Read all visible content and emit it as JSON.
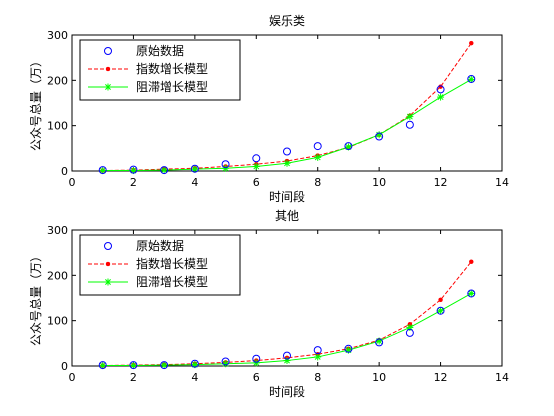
{
  "chart_data": [
    {
      "type": "line",
      "title": "娱乐类",
      "xlabel": "时间段",
      "ylabel": "公众号总量（万）",
      "xlim": [
        0,
        14
      ],
      "ylim": [
        0,
        300
      ],
      "xticks": [
        "0",
        "2",
        "4",
        "6",
        "8",
        "10",
        "12",
        "14"
      ],
      "yticks": [
        "0",
        "100",
        "200",
        "300"
      ],
      "grid": false,
      "legend_position": "top-left",
      "series": [
        {
          "name": "原始数据",
          "style": "markers-circle",
          "color": "#0000ff",
          "x": [
            1,
            2,
            3,
            4,
            5,
            6,
            7,
            8,
            9,
            10,
            11,
            12,
            13
          ],
          "y": [
            2,
            3,
            2,
            5,
            15,
            28,
            43,
            55,
            55,
            76,
            102,
            180,
            203
          ]
        },
        {
          "name": "指数增长模型",
          "style": "dashed-dot",
          "color": "#ff0000",
          "x": [
            1,
            2,
            3,
            4,
            5,
            6,
            7,
            8,
            9,
            10,
            11,
            12,
            13
          ],
          "y": [
            1,
            2,
            4,
            6,
            10,
            15,
            22,
            34,
            52,
            80,
            122,
            186,
            282
          ]
        },
        {
          "name": "阻滞增长模型",
          "style": "solid-star",
          "color": "#00ff00",
          "x": [
            1,
            2,
            3,
            4,
            5,
            6,
            7,
            8,
            9,
            10,
            11,
            12,
            13
          ],
          "y": [
            1,
            1,
            2,
            4,
            6,
            10,
            17,
            30,
            53,
            80,
            120,
            163,
            202
          ]
        }
      ]
    },
    {
      "type": "line",
      "title": "其他",
      "xlabel": "时间段",
      "ylabel": "公众号总量（万）",
      "xlim": [
        0,
        14
      ],
      "ylim": [
        0,
        300
      ],
      "xticks": [
        "0",
        "2",
        "4",
        "6",
        "8",
        "10",
        "12",
        "14"
      ],
      "yticks": [
        "0",
        "100",
        "200",
        "300"
      ],
      "grid": false,
      "legend_position": "top-left",
      "series": [
        {
          "name": "原始数据",
          "style": "markers-circle",
          "color": "#0000ff",
          "x": [
            1,
            2,
            3,
            4,
            5,
            6,
            7,
            8,
            9,
            10,
            11,
            12,
            13
          ],
          "y": [
            2,
            2,
            2,
            5,
            10,
            16,
            23,
            35,
            38,
            52,
            73,
            122,
            160
          ]
        },
        {
          "name": "指数增长模型",
          "style": "dashed-dot",
          "color": "#ff0000",
          "x": [
            1,
            2,
            3,
            4,
            5,
            6,
            7,
            8,
            9,
            10,
            11,
            12,
            13
          ],
          "y": [
            1,
            2,
            3,
            5,
            8,
            12,
            18,
            26,
            38,
            57,
            92,
            146,
            230
          ]
        },
        {
          "name": "阻滞增长模型",
          "style": "solid-star",
          "color": "#00ff00",
          "x": [
            1,
            2,
            3,
            4,
            5,
            6,
            7,
            8,
            9,
            10,
            11,
            12,
            13
          ],
          "y": [
            1,
            1,
            2,
            3,
            5,
            7,
            12,
            20,
            35,
            55,
            85,
            122,
            160
          ]
        }
      ]
    }
  ]
}
